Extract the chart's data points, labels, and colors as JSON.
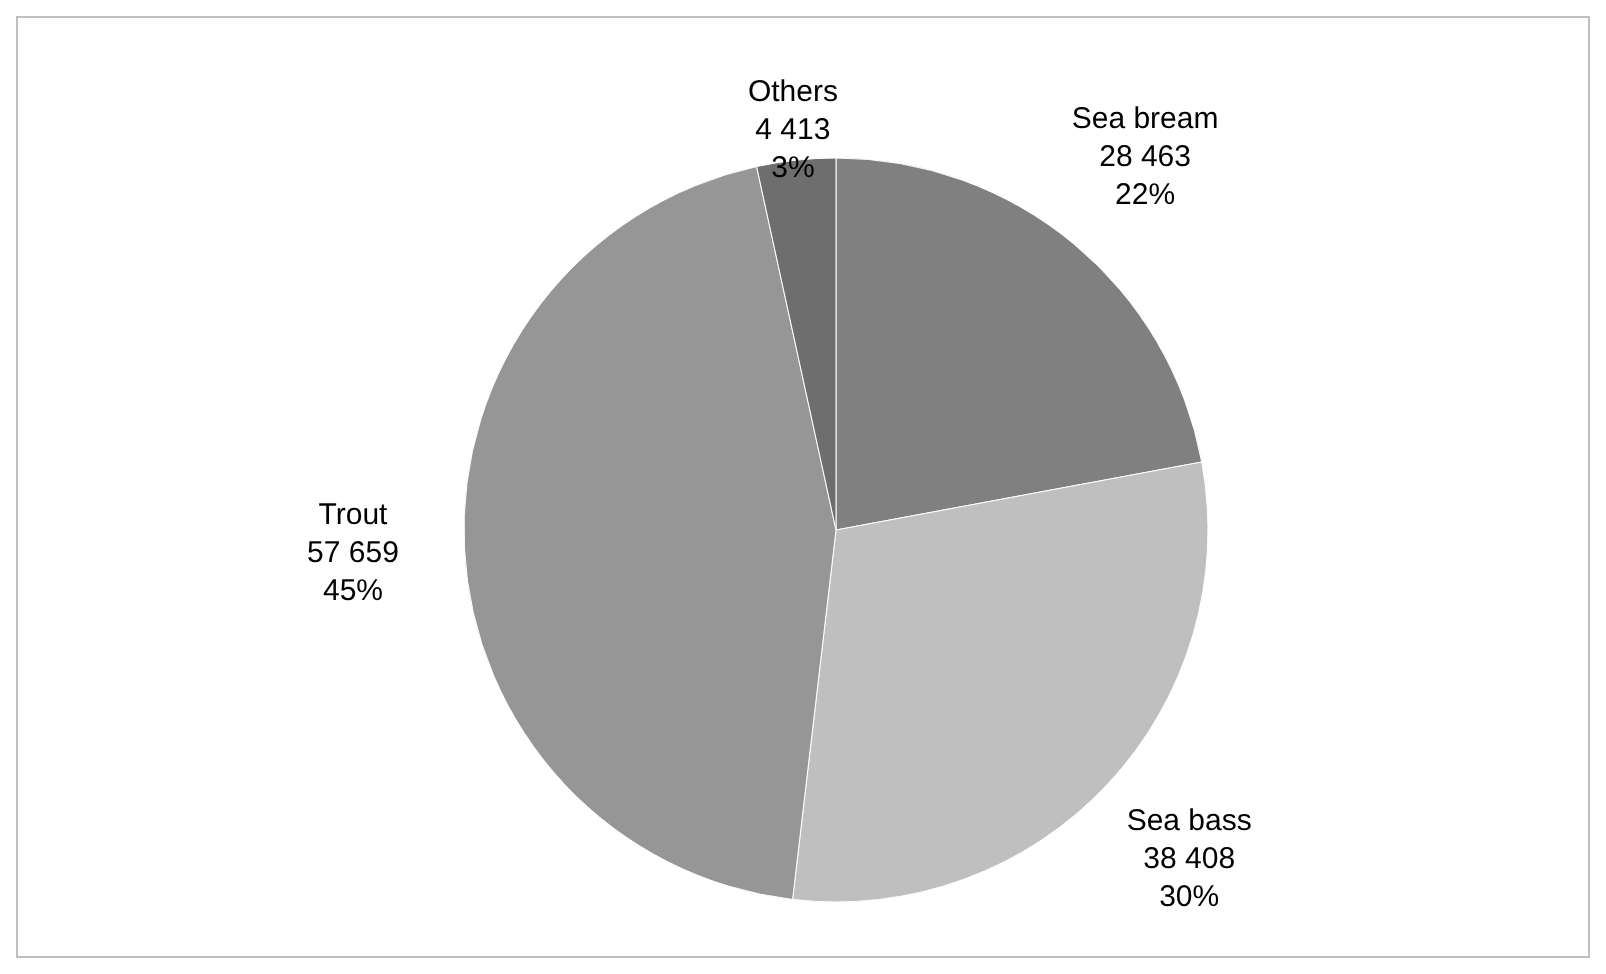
{
  "chart_data": {
    "type": "pie",
    "categories": [
      "Sea bream",
      "Sea bass",
      "Trout",
      "Others"
    ],
    "values": [
      28463,
      38408,
      57659,
      4413
    ],
    "colors": [
      "#808080",
      "#bfbfbf",
      "#969696",
      "#6e6e6e"
    ],
    "value_labels": [
      "28 463\n22%",
      "38 408\n30%",
      "57 659\n45%",
      "4 413\n3%"
    ],
    "legend": false
  }
}
